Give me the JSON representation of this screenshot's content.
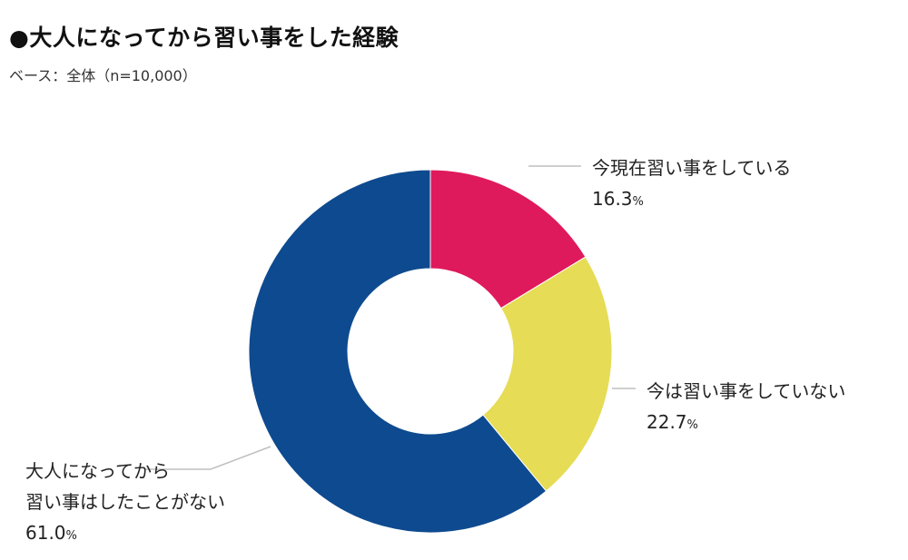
{
  "title": "●大人になってから習い事をした経験",
  "base_text": "ベース：全体（n=10,000）",
  "chart_data": {
    "type": "pie",
    "donut": true,
    "title": "●大人になってから習い事をした経験",
    "subtitle": "ベース：全体（n=10,000）",
    "unit": "%",
    "slices": [
      {
        "label": "今現在習い事をしている",
        "label_lines": [
          "今現在習い事をしている"
        ],
        "value": 16.3,
        "value_text": "16.3",
        "color": "#df1a5c"
      },
      {
        "label": "今は習い事をしていない",
        "label_lines": [
          "今は習い事をしていない"
        ],
        "value": 22.7,
        "value_text": "22.7",
        "color": "#e6dc55"
      },
      {
        "label": "大人になってから習い事はしたことがない",
        "label_lines": [
          "大人になってから",
          "習い事はしたことがない"
        ],
        "value": 61.0,
        "value_text": "61.0",
        "color": "#0e4a8f"
      }
    ]
  }
}
